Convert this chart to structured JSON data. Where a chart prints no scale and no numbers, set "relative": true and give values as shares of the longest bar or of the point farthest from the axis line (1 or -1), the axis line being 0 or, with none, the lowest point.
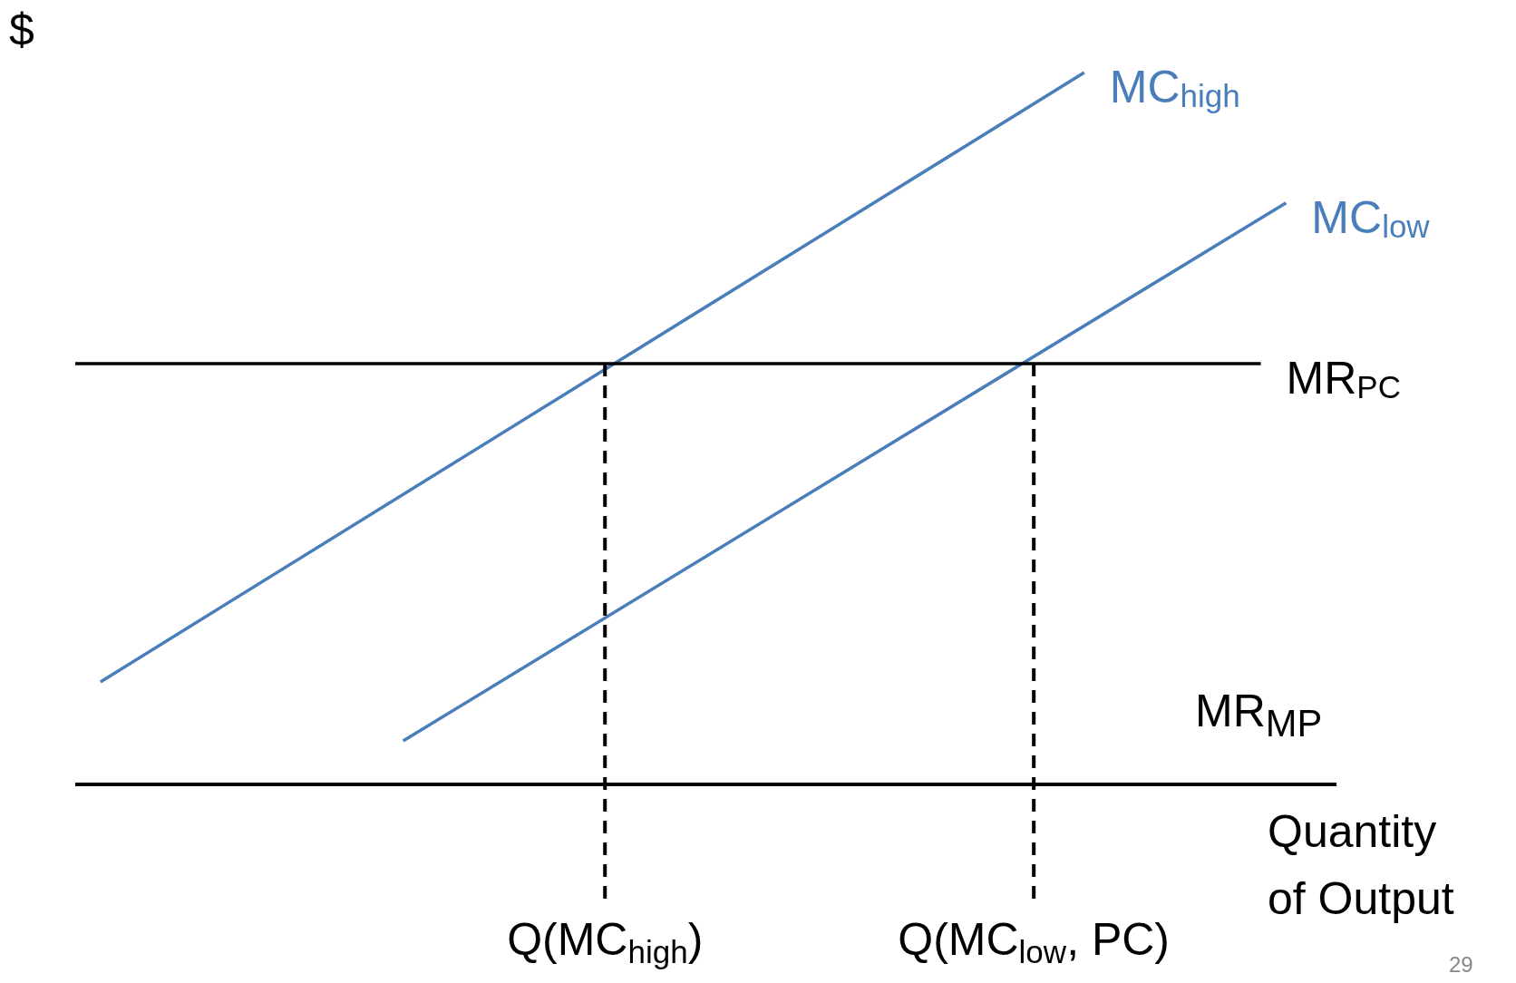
{
  "chart_data": {
    "type": "line",
    "relative": true,
    "ylabel": "$",
    "xlabel": "Quantity of Output",
    "grid": false,
    "legend": false,
    "marker": "none",
    "categories": [
      null,
      null,
      null,
      null,
      null,
      null,
      null,
      null,
      null,
      null,
      null,
      null,
      null,
      null,
      null,
      null,
      null,
      null,
      null,
      null,
      null,
      "Q(MC$_{high}$)",
      null,
      null,
      null,
      null,
      null,
      null,
      null,
      null,
      null,
      null,
      null,
      null,
      null,
      null,
      null,
      null,
      "Q(MC$_{low}$, PC)",
      null,
      null,
      null,
      null,
      null,
      null,
      null,
      null,
      null,
      null,
      null,
      null
    ],
    "series": [
      {
        "name": "MC$_{high}$",
        "color": "#4a7ebb",
        "values": [
          null,
          0.144,
          null,
          null,
          null,
          null,
          null,
          null,
          null,
          null,
          null,
          null,
          null,
          null,
          null,
          null,
          null,
          null,
          null,
          null,
          null,
          null,
          null,
          null,
          null,
          null,
          null,
          null,
          null,
          null,
          null,
          null,
          null,
          null,
          null,
          null,
          null,
          null,
          null,
          null,
          1,
          null,
          null,
          null,
          null,
          null,
          null,
          null,
          null,
          null,
          null
        ]
      },
      {
        "name": "MC$_{low}$",
        "color": "#4a7ebb",
        "values": [
          null,
          null,
          null,
          null,
          null,
          null,
          null,
          null,
          null,
          null,
          null,
          null,
          null,
          0.061,
          null,
          null,
          null,
          null,
          null,
          null,
          null,
          null,
          null,
          null,
          null,
          null,
          null,
          null,
          null,
          null,
          null,
          null,
          null,
          null,
          null,
          null,
          null,
          null,
          null,
          null,
          null,
          null,
          null,
          null,
          null,
          null,
          null,
          null,
          0.817,
          null,
          null
        ]
      },
      {
        "name": "MR$_{PC}$",
        "color": "#000000",
        "values": [
          0.591,
          null,
          null,
          null,
          null,
          null,
          null,
          null,
          null,
          null,
          null,
          null,
          null,
          null,
          null,
          null,
          null,
          null,
          null,
          null,
          null,
          null,
          null,
          null,
          null,
          null,
          null,
          null,
          null,
          null,
          null,
          null,
          null,
          null,
          null,
          null,
          null,
          null,
          null,
          null,
          null,
          null,
          null,
          null,
          null,
          null,
          null,
          0.591,
          null,
          null,
          null
        ]
      }
    ],
    "ref_lines": [
      {
        "axis": "x",
        "value": "Q(MC$_{high}$)",
        "color": "#000000",
        "line_style": "dashed"
      },
      {
        "axis": "x",
        "value": "Q(MC$_{low}$, PC)",
        "color": "#000000",
        "line_style": "dashed"
      }
    ],
    "annotations": [
      "MR$_{MP}$",
      "29"
    ]
  }
}
